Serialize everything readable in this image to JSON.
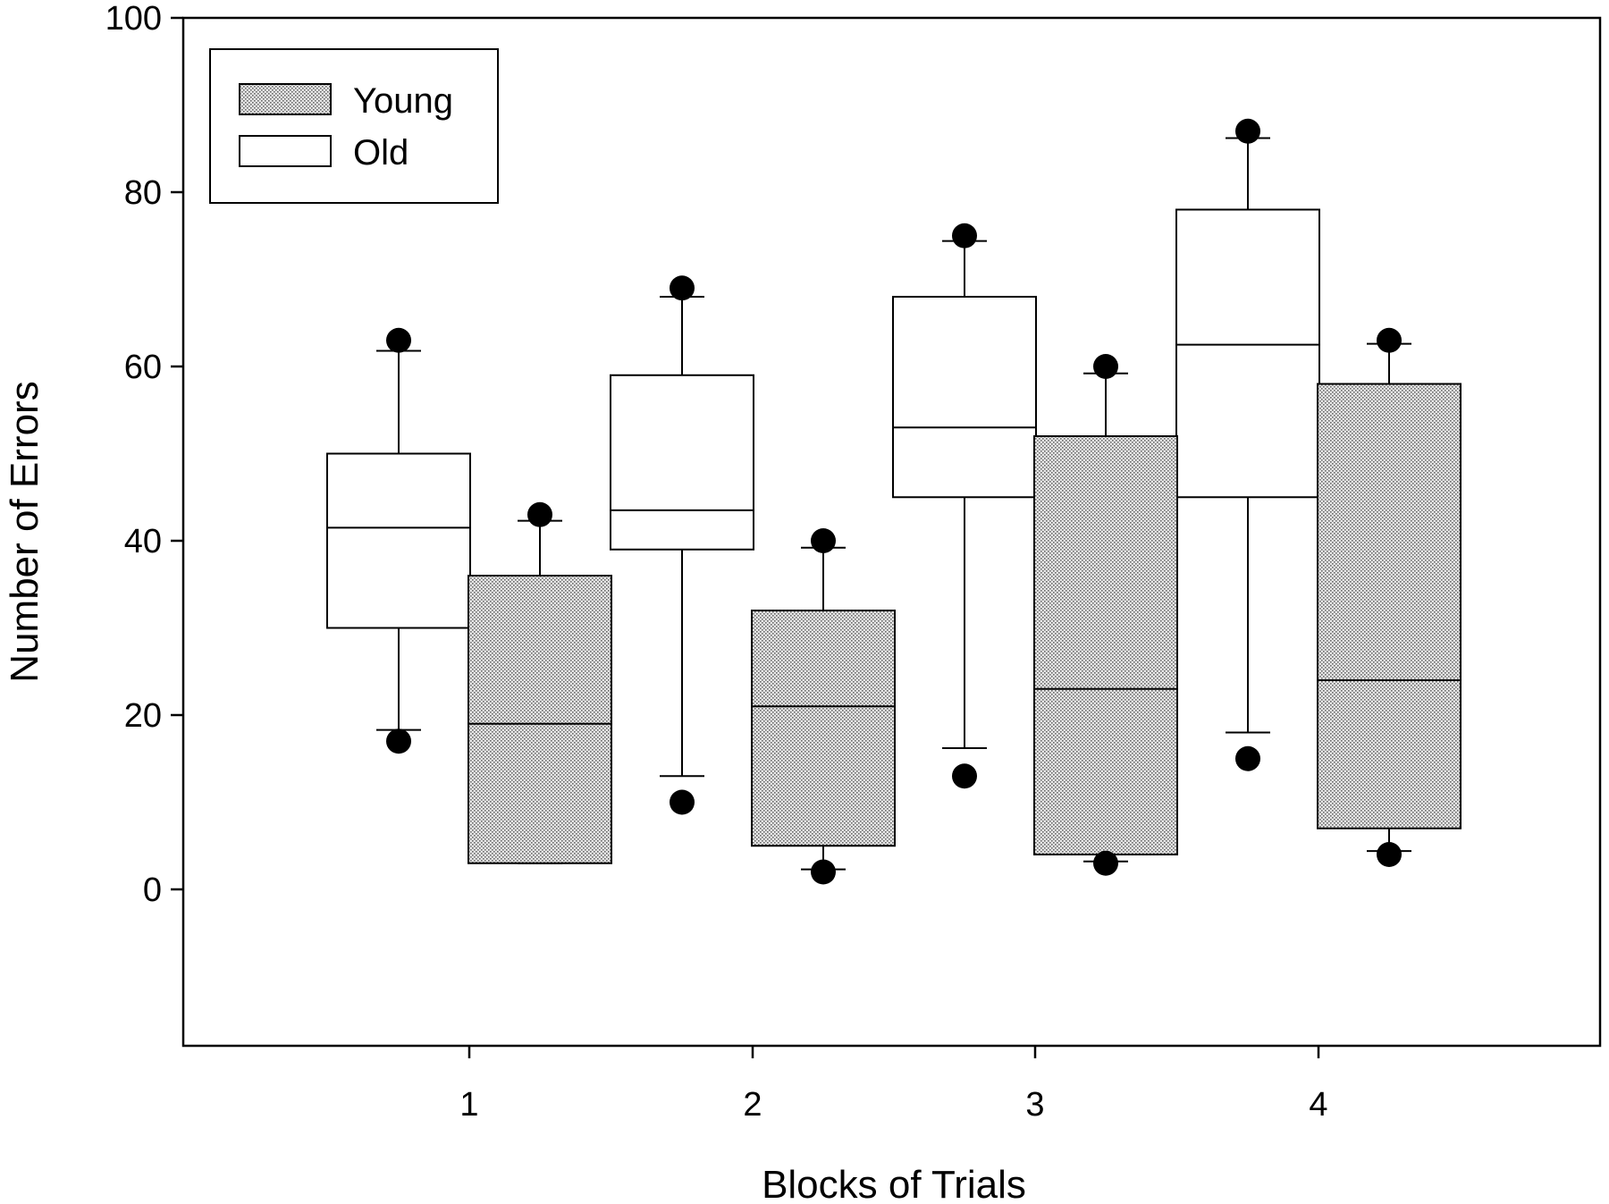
{
  "chart_data": {
    "type": "box",
    "xlabel": "Blocks of Trials",
    "ylabel": "Number of Errors",
    "ylim": [
      -18,
      100
    ],
    "yticks": [
      0,
      20,
      40,
      60,
      80,
      100
    ],
    "categories": [
      "1",
      "2",
      "3",
      "4"
    ],
    "legend": {
      "position": "top-left",
      "entries": [
        {
          "label": "Young",
          "fill": "stippled-gray"
        },
        {
          "label": "Old",
          "fill": "white"
        }
      ]
    },
    "series": [
      {
        "name": "Old",
        "position": "left",
        "color": "#ffffff",
        "boxes": [
          {
            "category": "1",
            "q1": 30,
            "median": 41.5,
            "q3": 50,
            "whisker_low": 18.3,
            "whisker_high": 61.8,
            "outlier_low": 17,
            "outlier_high": 63
          },
          {
            "category": "2",
            "q1": 39,
            "median": 43.5,
            "q3": 59,
            "whisker_low": 13,
            "whisker_high": 68,
            "outlier_low": 10,
            "outlier_high": 69
          },
          {
            "category": "3",
            "q1": 45,
            "median": 53,
            "q3": 68,
            "whisker_low": 16.2,
            "whisker_high": 74.4,
            "outlier_low": 13,
            "outlier_high": 75
          },
          {
            "category": "4",
            "q1": 45,
            "median": 62.5,
            "q3": 78,
            "whisker_low": 18,
            "whisker_high": 86.2,
            "outlier_low": 15,
            "outlier_high": 87
          }
        ]
      },
      {
        "name": "Young",
        "position": "right",
        "color": "#c8c8c8",
        "boxes": [
          {
            "category": "1",
            "q1": 3,
            "median": 19,
            "q3": 36,
            "whisker_low": 3,
            "whisker_high": 42.3,
            "outlier_low": null,
            "outlier_high": 43
          },
          {
            "category": "2",
            "q1": 5,
            "median": 21,
            "q3": 32,
            "whisker_low": 2.3,
            "whisker_high": 39.2,
            "outlier_low": 2,
            "outlier_high": 40
          },
          {
            "category": "3",
            "q1": 4,
            "median": 23,
            "q3": 52,
            "whisker_low": 3.2,
            "whisker_high": 59.2,
            "outlier_low": 3,
            "outlier_high": 60
          },
          {
            "category": "4",
            "q1": 7,
            "median": 24,
            "q3": 58,
            "whisker_low": 4.4,
            "whisker_high": 62.6,
            "outlier_low": 4,
            "outlier_high": 63
          }
        ]
      }
    ]
  }
}
